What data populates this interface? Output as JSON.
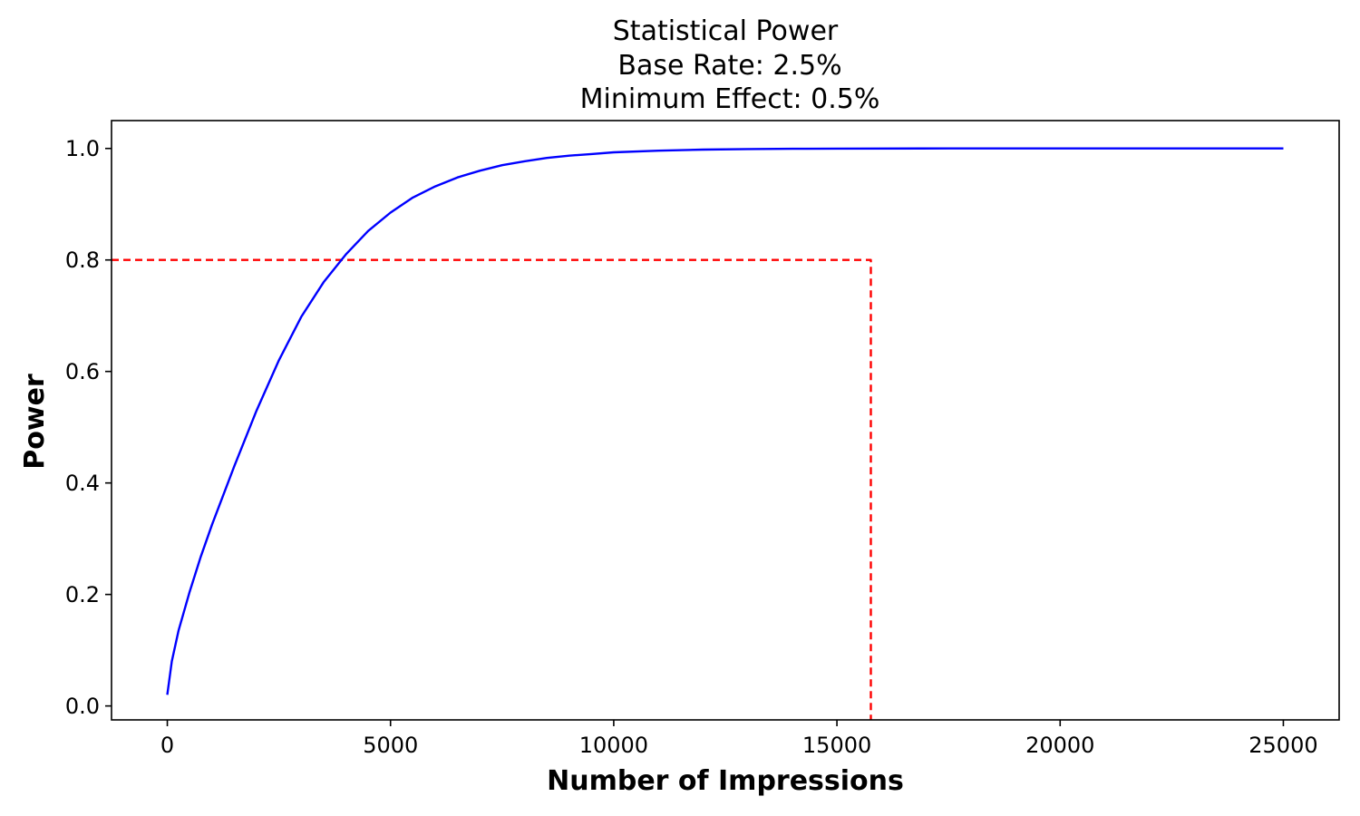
{
  "chart_data": {
    "type": "line",
    "title_lines": [
      "Statistical Power",
      "Base Rate: 2.5%",
      "Minimum Effect: 0.5%"
    ],
    "xlabel": "Number of Impressions",
    "ylabel": "Power",
    "xlim": [
      -1250,
      26250
    ],
    "ylim": [
      -0.025,
      1.05
    ],
    "x_ticks": [
      0,
      5000,
      10000,
      15000,
      20000,
      25000
    ],
    "y_ticks": [
      0.0,
      0.2,
      0.4,
      0.6,
      0.8,
      1.0
    ],
    "x_tick_labels": [
      "0",
      "5000",
      "10000",
      "15000",
      "20000",
      "25000"
    ],
    "y_tick_labels": [
      "0.0",
      "0.2",
      "0.4",
      "0.6",
      "0.8",
      "1.0"
    ],
    "grid": false,
    "series": [
      {
        "color": "#0000ff",
        "style": "solid",
        "x": [
          0,
          100,
          250,
          500,
          750,
          1000,
          1500,
          2000,
          2500,
          3000,
          3500,
          4000,
          4500,
          5000,
          5500,
          6000,
          6500,
          7000,
          7500,
          8000,
          8500,
          9000,
          9500,
          10000,
          11000,
          12000,
          13000,
          14000,
          15000,
          17500,
          20000,
          22500,
          25000
        ],
        "y": [
          0.02,
          0.08,
          0.135,
          0.205,
          0.268,
          0.325,
          0.43,
          0.53,
          0.62,
          0.698,
          0.76,
          0.81,
          0.852,
          0.885,
          0.912,
          0.932,
          0.948,
          0.96,
          0.97,
          0.977,
          0.983,
          0.987,
          0.99,
          0.993,
          0.996,
          0.998,
          0.999,
          0.9995,
          0.9998,
          1.0,
          1.0,
          1.0,
          1.0
        ]
      }
    ],
    "reference_lines": [
      {
        "color": "#ff0000",
        "style": "dashed",
        "x": [
          -1250,
          15760,
          15760
        ],
        "y": [
          0.8,
          0.8,
          -0.025
        ]
      }
    ]
  }
}
